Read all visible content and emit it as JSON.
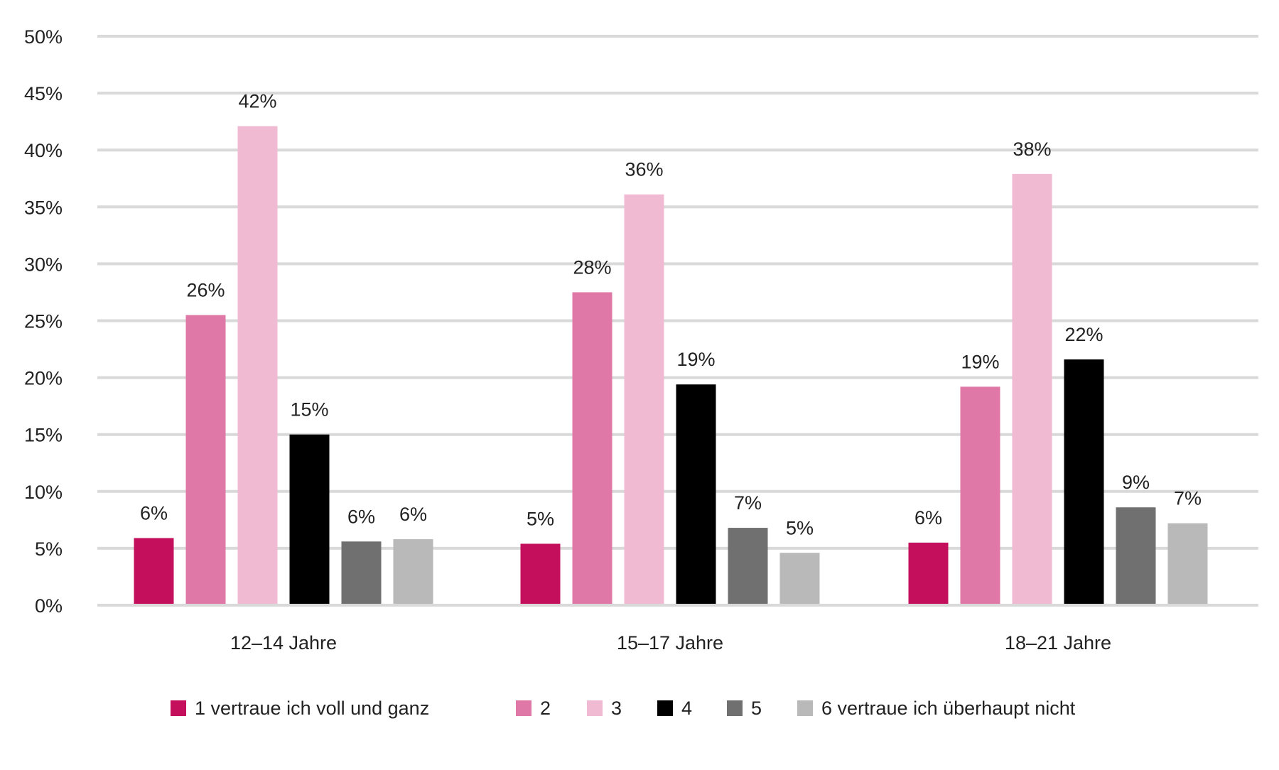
{
  "chart_data": {
    "type": "bar",
    "title": "",
    "xlabel": "",
    "ylabel": "",
    "ylim": [
      0,
      50
    ],
    "yticks": [
      "0%",
      "5%",
      "10%",
      "15%",
      "20%",
      "25%",
      "30%",
      "35%",
      "40%",
      "45%",
      "50%"
    ],
    "grid": true,
    "legend_position": "bottom",
    "categories": [
      "12–14 Jahre",
      "15–17 Jahre",
      "18–21 Jahre"
    ],
    "series": [
      {
        "name": "1 vertraue ich voll und ganz",
        "color": "#c4105c",
        "values": [
          5.9,
          5.4,
          5.5
        ],
        "labels": [
          "6%",
          "5%",
          "6%"
        ]
      },
      {
        "name": "2",
        "color": "#df78a6",
        "values": [
          25.5,
          27.5,
          19.2
        ],
        "labels": [
          "26%",
          "28%",
          "19%"
        ]
      },
      {
        "name": "3",
        "color": "#f0bad3",
        "values": [
          42.1,
          36.1,
          37.9
        ],
        "labels": [
          "42%",
          "36%",
          "38%"
        ]
      },
      {
        "name": "4",
        "color": "#000000",
        "values": [
          15.0,
          19.4,
          21.6
        ],
        "labels": [
          "15%",
          "19%",
          "22%"
        ]
      },
      {
        "name": "5",
        "color": "#707070",
        "values": [
          5.6,
          6.8,
          8.6
        ],
        "labels": [
          "6%",
          "7%",
          "9%"
        ]
      },
      {
        "name": "6 vertraue ich überhaupt nicht",
        "color": "#b9b9b9",
        "values": [
          5.8,
          4.6,
          7.2
        ],
        "labels": [
          "6%",
          "5%",
          "7%"
        ]
      }
    ]
  }
}
